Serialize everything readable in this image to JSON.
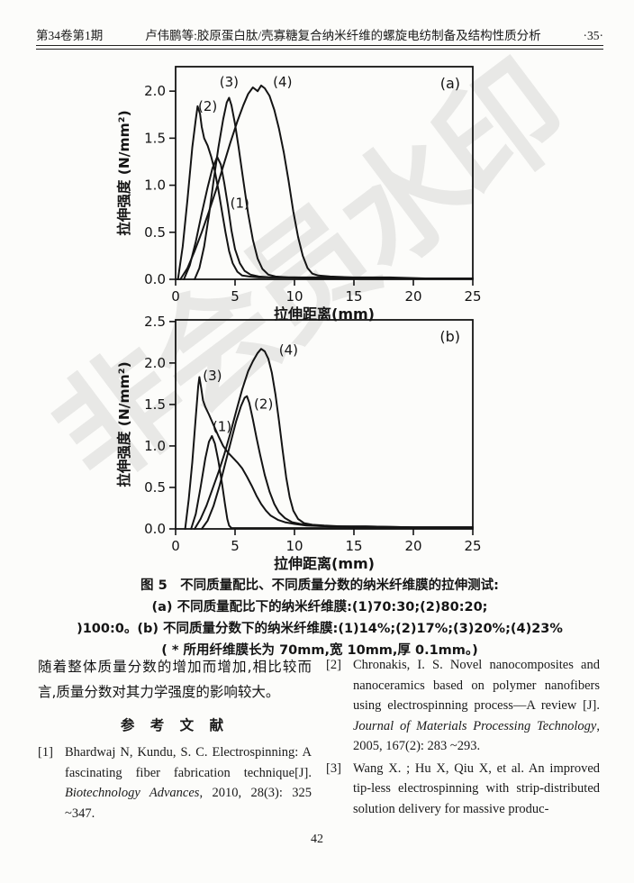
{
  "header": {
    "issue": "第34卷第1期",
    "title": "卢伟鹏等:胶原蛋白肽/壳寡糖复合纳米纤维的螺旋电纺制备及结构性质分析",
    "page_no": "·35·"
  },
  "watermark": {
    "text": "非会员水印",
    "color": "#c9c9c9"
  },
  "figure": {
    "captions": [
      "图 5　不同质量配比、不同质量分数的纳米纤维膜的拉伸测试:",
      "(a) 不同质量配比下的纳米纤维膜:(1)70:30;(2)80:20;",
      ")100:0。(b) 不同质量分数下的纳米纤维膜:(1)14%;(2)17%;(3)20%;(4)23%",
      "( * 所用纤维膜长为 70mm,宽 10mm,厚 0.1mm。)"
    ]
  },
  "chart_data": [
    {
      "type": "line",
      "panel_label": "(a)",
      "xlabel": "拉伸距离(mm)",
      "ylabel": "拉伸强度 (N/mm²)",
      "xlim": [
        0,
        25
      ],
      "ylim": [
        0,
        2.26
      ],
      "grid": false,
      "legend_position": "inline-curve-labels",
      "stroke": "#141414",
      "xticks": [
        {
          "v": 0,
          "t": "0"
        },
        {
          "v": 5,
          "t": "5"
        },
        {
          "v": 10,
          "t": "10"
        },
        {
          "v": 15,
          "t": "15"
        },
        {
          "v": 20,
          "t": "20"
        },
        {
          "v": 25,
          "t": "25"
        }
      ],
      "yticks": [
        {
          "v": 0,
          "t": "0.0"
        },
        {
          "v": 0.5,
          "t": "0.5"
        },
        {
          "v": 1,
          "t": "1.0"
        },
        {
          "v": 1.5,
          "t": "1.5"
        },
        {
          "v": 2,
          "t": "2.0"
        }
      ],
      "series": [
        {
          "name": "(1)",
          "label_xy": [
            5.4,
            0.76
          ],
          "points": [
            [
              0.7,
              0
            ],
            [
              1.2,
              0.15
            ],
            [
              1.7,
              0.4
            ],
            [
              2.2,
              0.7
            ],
            [
              2.7,
              0.98
            ],
            [
              3.1,
              1.18
            ],
            [
              3.5,
              1.3
            ],
            [
              3.8,
              1.22
            ],
            [
              4.1,
              1.02
            ],
            [
              4.4,
              0.78
            ],
            [
              4.7,
              0.52
            ],
            [
              5.0,
              0.32
            ],
            [
              5.4,
              0.17
            ],
            [
              5.8,
              0.09
            ],
            [
              6.3,
              0.05
            ],
            [
              7,
              0.03
            ],
            [
              8,
              0.02
            ],
            [
              10,
              0.02
            ],
            [
              13,
              0.01
            ],
            [
              17,
              0.01
            ],
            [
              21,
              0.01
            ],
            [
              25,
              0.01
            ]
          ]
        },
        {
          "name": "(2)",
          "label_xy": [
            2.7,
            1.79
          ],
          "points": [
            [
              0.2,
              0
            ],
            [
              0.6,
              0.35
            ],
            [
              1.0,
              0.85
            ],
            [
              1.4,
              1.4
            ],
            [
              1.7,
              1.7
            ],
            [
              1.85,
              1.84
            ],
            [
              2.05,
              1.76
            ],
            [
              2.2,
              1.62
            ],
            [
              2.4,
              1.5
            ],
            [
              2.7,
              1.42
            ],
            [
              3.0,
              1.3
            ],
            [
              3.3,
              1.15
            ],
            [
              3.6,
              0.95
            ],
            [
              3.9,
              0.72
            ],
            [
              4.2,
              0.5
            ],
            [
              4.5,
              0.3
            ],
            [
              4.8,
              0.17
            ],
            [
              5.2,
              0.08
            ],
            [
              5.6,
              0.04
            ],
            [
              6.2,
              0.03
            ],
            [
              7,
              0.02
            ],
            [
              9,
              0.02
            ],
            [
              12,
              0.01
            ],
            [
              16,
              0.01
            ],
            [
              20,
              0.01
            ],
            [
              25,
              0.01
            ]
          ]
        },
        {
          "name": "(3)",
          "label_xy": [
            4.5,
            2.05
          ],
          "points": [
            [
              1.6,
              0
            ],
            [
              2.0,
              0.12
            ],
            [
              2.4,
              0.35
            ],
            [
              2.8,
              0.68
            ],
            [
              3.2,
              1.05
            ],
            [
              3.6,
              1.4
            ],
            [
              4.0,
              1.7
            ],
            [
              4.3,
              1.88
            ],
            [
              4.5,
              1.93
            ],
            [
              4.7,
              1.85
            ],
            [
              5.0,
              1.65
            ],
            [
              5.3,
              1.4
            ],
            [
              5.7,
              1.05
            ],
            [
              6.1,
              0.7
            ],
            [
              6.5,
              0.42
            ],
            [
              6.9,
              0.22
            ],
            [
              7.3,
              0.11
            ],
            [
              7.8,
              0.05
            ],
            [
              8.4,
              0.03
            ],
            [
              9.5,
              0.02
            ],
            [
              12,
              0.02
            ],
            [
              16,
              0.01
            ],
            [
              20,
              0.01
            ],
            [
              25,
              0.01
            ]
          ]
        },
        {
          "name": "(4)",
          "label_xy": [
            9.0,
            2.05
          ],
          "points": [
            [
              0.4,
              0
            ],
            [
              1.0,
              0.12
            ],
            [
              1.6,
              0.3
            ],
            [
              2.2,
              0.5
            ],
            [
              2.8,
              0.72
            ],
            [
              3.4,
              0.95
            ],
            [
              4.0,
              1.2
            ],
            [
              4.6,
              1.45
            ],
            [
              5.2,
              1.68
            ],
            [
              5.7,
              1.85
            ],
            [
              6.1,
              1.97
            ],
            [
              6.5,
              2.04
            ],
            [
              6.9,
              2.0
            ],
            [
              7.2,
              2.06
            ],
            [
              7.5,
              2.03
            ],
            [
              7.9,
              1.95
            ],
            [
              8.3,
              1.8
            ],
            [
              8.7,
              1.6
            ],
            [
              9.1,
              1.35
            ],
            [
              9.5,
              1.05
            ],
            [
              9.9,
              0.72
            ],
            [
              10.3,
              0.45
            ],
            [
              10.7,
              0.25
            ],
            [
              11.1,
              0.12
            ],
            [
              11.5,
              0.06
            ],
            [
              12,
              0.04
            ],
            [
              13,
              0.03
            ],
            [
              15,
              0.02
            ],
            [
              18,
              0.02
            ],
            [
              21,
              0.01
            ],
            [
              25,
              0.01
            ]
          ]
        }
      ]
    },
    {
      "type": "line",
      "panel_label": "(b)",
      "xlabel": "拉伸距离(mm)",
      "ylabel": "拉伸强度 (N/mm²)",
      "xlim": [
        0,
        25
      ],
      "ylim": [
        0,
        2.52
      ],
      "grid": false,
      "legend_position": "inline-curve-labels",
      "stroke": "#141414",
      "xticks": [
        {
          "v": 0,
          "t": "0"
        },
        {
          "v": 5,
          "t": "5"
        },
        {
          "v": 10,
          "t": "10"
        },
        {
          "v": 15,
          "t": "15"
        },
        {
          "v": 20,
          "t": "20"
        },
        {
          "v": 25,
          "t": "25"
        }
      ],
      "yticks": [
        {
          "v": 0,
          "t": "0.0"
        },
        {
          "v": 0.5,
          "t": "0.5"
        },
        {
          "v": 1,
          "t": "1.0"
        },
        {
          "v": 1.5,
          "t": "1.5"
        },
        {
          "v": 2,
          "t": "2.0"
        },
        {
          "v": 2.5,
          "t": "2.5"
        }
      ],
      "series": [
        {
          "name": "(1)",
          "label_xy": [
            3.9,
            1.18
          ],
          "points": [
            [
              1.3,
              0
            ],
            [
              1.7,
              0.18
            ],
            [
              2.1,
              0.5
            ],
            [
              2.5,
              0.85
            ],
            [
              2.8,
              1.05
            ],
            [
              3.05,
              1.12
            ],
            [
              3.3,
              1.03
            ],
            [
              3.6,
              0.82
            ],
            [
              3.9,
              0.55
            ],
            [
              4.15,
              0.3
            ],
            [
              4.35,
              0.12
            ],
            [
              4.5,
              0.04
            ],
            [
              4.7,
              0.01
            ],
            [
              6,
              0.01
            ],
            [
              10,
              0.01
            ],
            [
              15,
              0.01
            ],
            [
              20,
              0.01
            ],
            [
              25,
              0.01
            ]
          ]
        },
        {
          "name": "(2)",
          "label_xy": [
            7.4,
            1.45
          ],
          "points": [
            [
              2.2,
              0
            ],
            [
              2.7,
              0.1
            ],
            [
              3.2,
              0.28
            ],
            [
              3.7,
              0.52
            ],
            [
              4.2,
              0.8
            ],
            [
              4.7,
              1.08
            ],
            [
              5.1,
              1.3
            ],
            [
              5.5,
              1.48
            ],
            [
              5.8,
              1.58
            ],
            [
              6.0,
              1.6
            ],
            [
              6.2,
              1.52
            ],
            [
              6.5,
              1.32
            ],
            [
              6.8,
              1.1
            ],
            [
              7.1,
              0.9
            ],
            [
              7.5,
              0.65
            ],
            [
              7.9,
              0.45
            ],
            [
              8.3,
              0.3
            ],
            [
              8.7,
              0.2
            ],
            [
              9.2,
              0.13
            ],
            [
              9.8,
              0.08
            ],
            [
              10.5,
              0.06
            ],
            [
              11.5,
              0.04
            ],
            [
              13,
              0.03
            ],
            [
              16,
              0.03
            ],
            [
              20,
              0.02
            ],
            [
              25,
              0.02
            ]
          ]
        },
        {
          "name": "(3)",
          "label_xy": [
            3.1,
            1.79
          ],
          "points": [
            [
              0.8,
              0
            ],
            [
              1.1,
              0.35
            ],
            [
              1.4,
              0.8
            ],
            [
              1.7,
              1.35
            ],
            [
              1.9,
              1.72
            ],
            [
              2.0,
              1.83
            ],
            [
              2.15,
              1.7
            ],
            [
              2.3,
              1.55
            ],
            [
              2.5,
              1.47
            ],
            [
              2.8,
              1.38
            ],
            [
              3.2,
              1.25
            ],
            [
              3.6,
              1.12
            ],
            [
              4.0,
              1.0
            ],
            [
              4.4,
              0.92
            ],
            [
              4.8,
              0.86
            ],
            [
              5.2,
              0.8
            ],
            [
              5.6,
              0.73
            ],
            [
              6.0,
              0.63
            ],
            [
              6.4,
              0.52
            ],
            [
              6.8,
              0.4
            ],
            [
              7.2,
              0.3
            ],
            [
              7.6,
              0.22
            ],
            [
              8.0,
              0.16
            ],
            [
              8.6,
              0.11
            ],
            [
              9.2,
              0.08
            ],
            [
              10,
              0.06
            ],
            [
              11,
              0.04
            ],
            [
              13,
              0.03
            ],
            [
              16,
              0.03
            ],
            [
              20,
              0.02
            ],
            [
              25,
              0.02
            ]
          ]
        },
        {
          "name": "(4)",
          "label_xy": [
            9.5,
            2.1
          ],
          "points": [
            [
              1.6,
              0
            ],
            [
              2.1,
              0.12
            ],
            [
              2.6,
              0.28
            ],
            [
              3.1,
              0.48
            ],
            [
              3.6,
              0.68
            ],
            [
              4.1,
              0.9
            ],
            [
              4.6,
              1.15
            ],
            [
              5.1,
              1.42
            ],
            [
              5.6,
              1.68
            ],
            [
              6.1,
              1.9
            ],
            [
              6.5,
              2.02
            ],
            [
              6.9,
              2.12
            ],
            [
              7.2,
              2.17
            ],
            [
              7.5,
              2.14
            ],
            [
              7.8,
              2.05
            ],
            [
              8.1,
              1.88
            ],
            [
              8.4,
              1.62
            ],
            [
              8.7,
              1.3
            ],
            [
              9.0,
              0.95
            ],
            [
              9.3,
              0.62
            ],
            [
              9.6,
              0.38
            ],
            [
              9.9,
              0.22
            ],
            [
              10.3,
              0.12
            ],
            [
              10.8,
              0.07
            ],
            [
              11.5,
              0.05
            ],
            [
              12.5,
              0.04
            ],
            [
              14,
              0.03
            ],
            [
              17,
              0.02
            ],
            [
              21,
              0.02
            ],
            [
              25,
              0.02
            ]
          ]
        }
      ]
    }
  ],
  "body": {
    "left_paragraph": "随着整体质量分数的增加而增加,相比较而言,质量分数对其力学强度的影响较大。",
    "references_heading": "参 考 文 献",
    "references": [
      {
        "index": "[1]",
        "pre": "Bhardwaj N, Kundu, S. C. Electrospinning: A fascinating fiber fabrication technique[J]. ",
        "italic": "Biotechnology Advances",
        "post": ", 2010, 28(3): 325 ~347."
      },
      {
        "index": "[2]",
        "pre": "Chronakis, I. S. Novel nanocomposites and nanoceramics based on polymer nanofibers using electrospinning process—A review [J]. ",
        "italic": "Journal of Materials Processing Technology",
        "post": ", 2005, 167(2): 283 ~293."
      },
      {
        "index": "[3]",
        "pre": "Wang X. ; Hu X, Qiu X, et al. An improved tip-less electrospinning with strip-distributed solution delivery for massive produc-",
        "italic": "",
        "post": ""
      }
    ]
  },
  "footer": {
    "page_number": "42"
  }
}
